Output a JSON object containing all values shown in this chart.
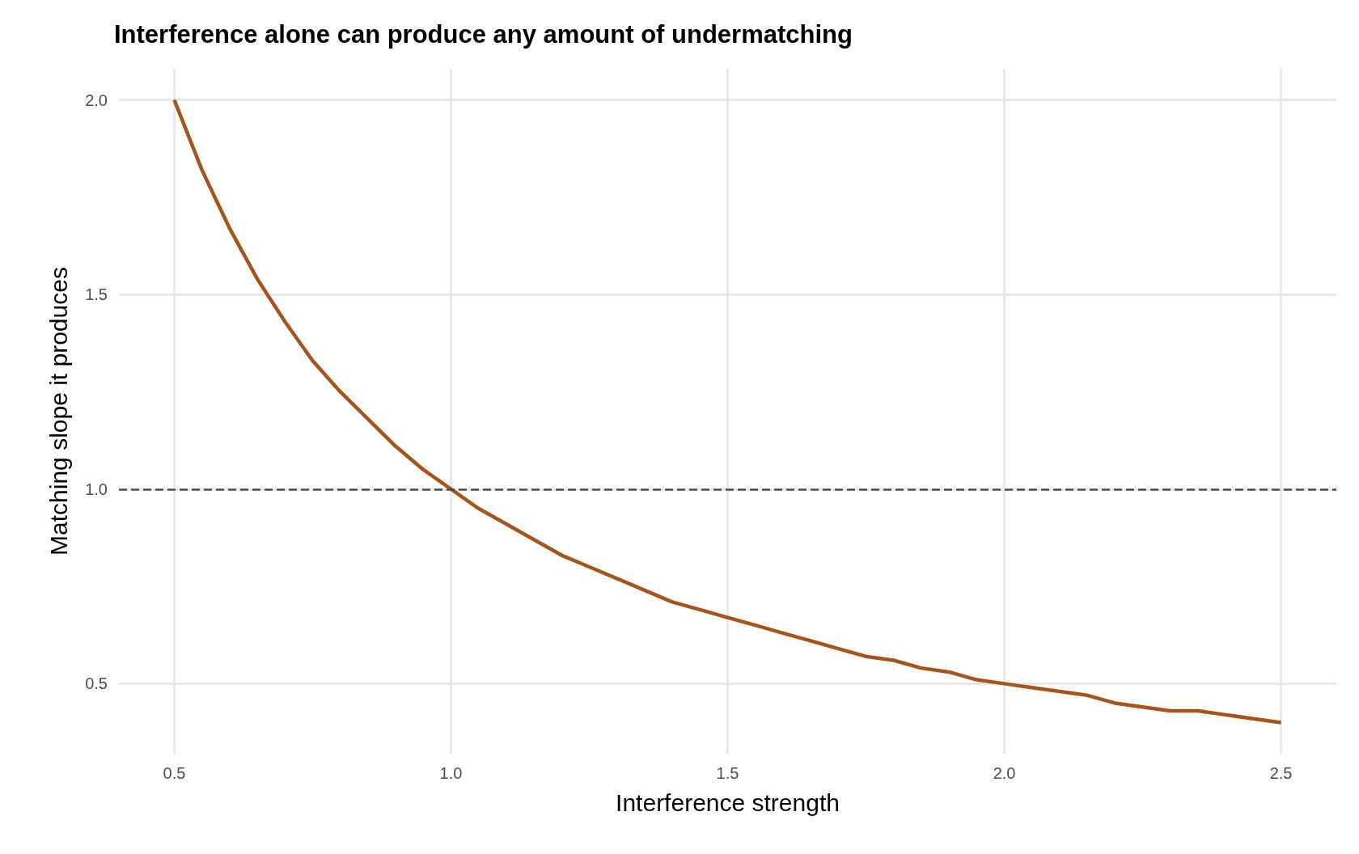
{
  "chart_data": {
    "type": "line",
    "title": "Interference alone can produce any amount of undermatching",
    "xlabel": "Interference strength",
    "ylabel": "Matching slope it produces",
    "x": [
      0.5,
      0.55,
      0.6,
      0.65,
      0.7,
      0.75,
      0.8,
      0.85,
      0.9,
      0.95,
      1,
      1.05,
      1.1,
      1.15,
      1.2,
      1.25,
      1.3,
      1.35,
      1.4,
      1.45,
      1.5,
      1.55,
      1.6,
      1.65,
      1.7,
      1.75,
      1.8,
      1.85,
      1.9,
      1.95,
      2,
      2.05,
      2.1,
      2.15,
      2.2,
      2.25,
      2.3,
      2.35,
      2.4,
      2.45,
      2.5
    ],
    "series": [
      {
        "color": "#a5541b",
        "values": [
          2,
          1.82,
          1.67,
          1.54,
          1.43,
          1.33,
          1.25,
          1.18,
          1.11,
          1.05,
          1,
          0.95,
          0.91,
          0.87,
          0.83,
          0.8,
          0.77,
          0.74,
          0.71,
          0.69,
          0.67,
          0.65,
          0.63,
          0.61,
          0.59,
          0.57,
          0.56,
          0.54,
          0.53,
          0.51,
          0.5,
          0.49,
          0.48,
          0.47,
          0.45,
          0.44,
          0.43,
          0.43,
          0.42,
          0.41,
          0.4
        ]
      }
    ],
    "xlim": [
      0.4,
      2.6
    ],
    "xticks": [
      0.5,
      {
        "value": 1,
        "label": "1.0"
      },
      1.5,
      {
        "value": 2,
        "label": "2.0"
      },
      2.5
    ],
    "ylim": [
      0.32,
      2.08
    ],
    "yticks": [
      0.5,
      {
        "value": 1,
        "label": "1.0"
      },
      1.5,
      {
        "value": 2,
        "label": "2.0"
      }
    ],
    "ref_lines": [
      {
        "axis": "y",
        "value": 1,
        "color": "#4d4d4d",
        "line_style": "dashed"
      }
    ],
    "grid": true,
    "marker": "none",
    "line_style": "solid"
  }
}
